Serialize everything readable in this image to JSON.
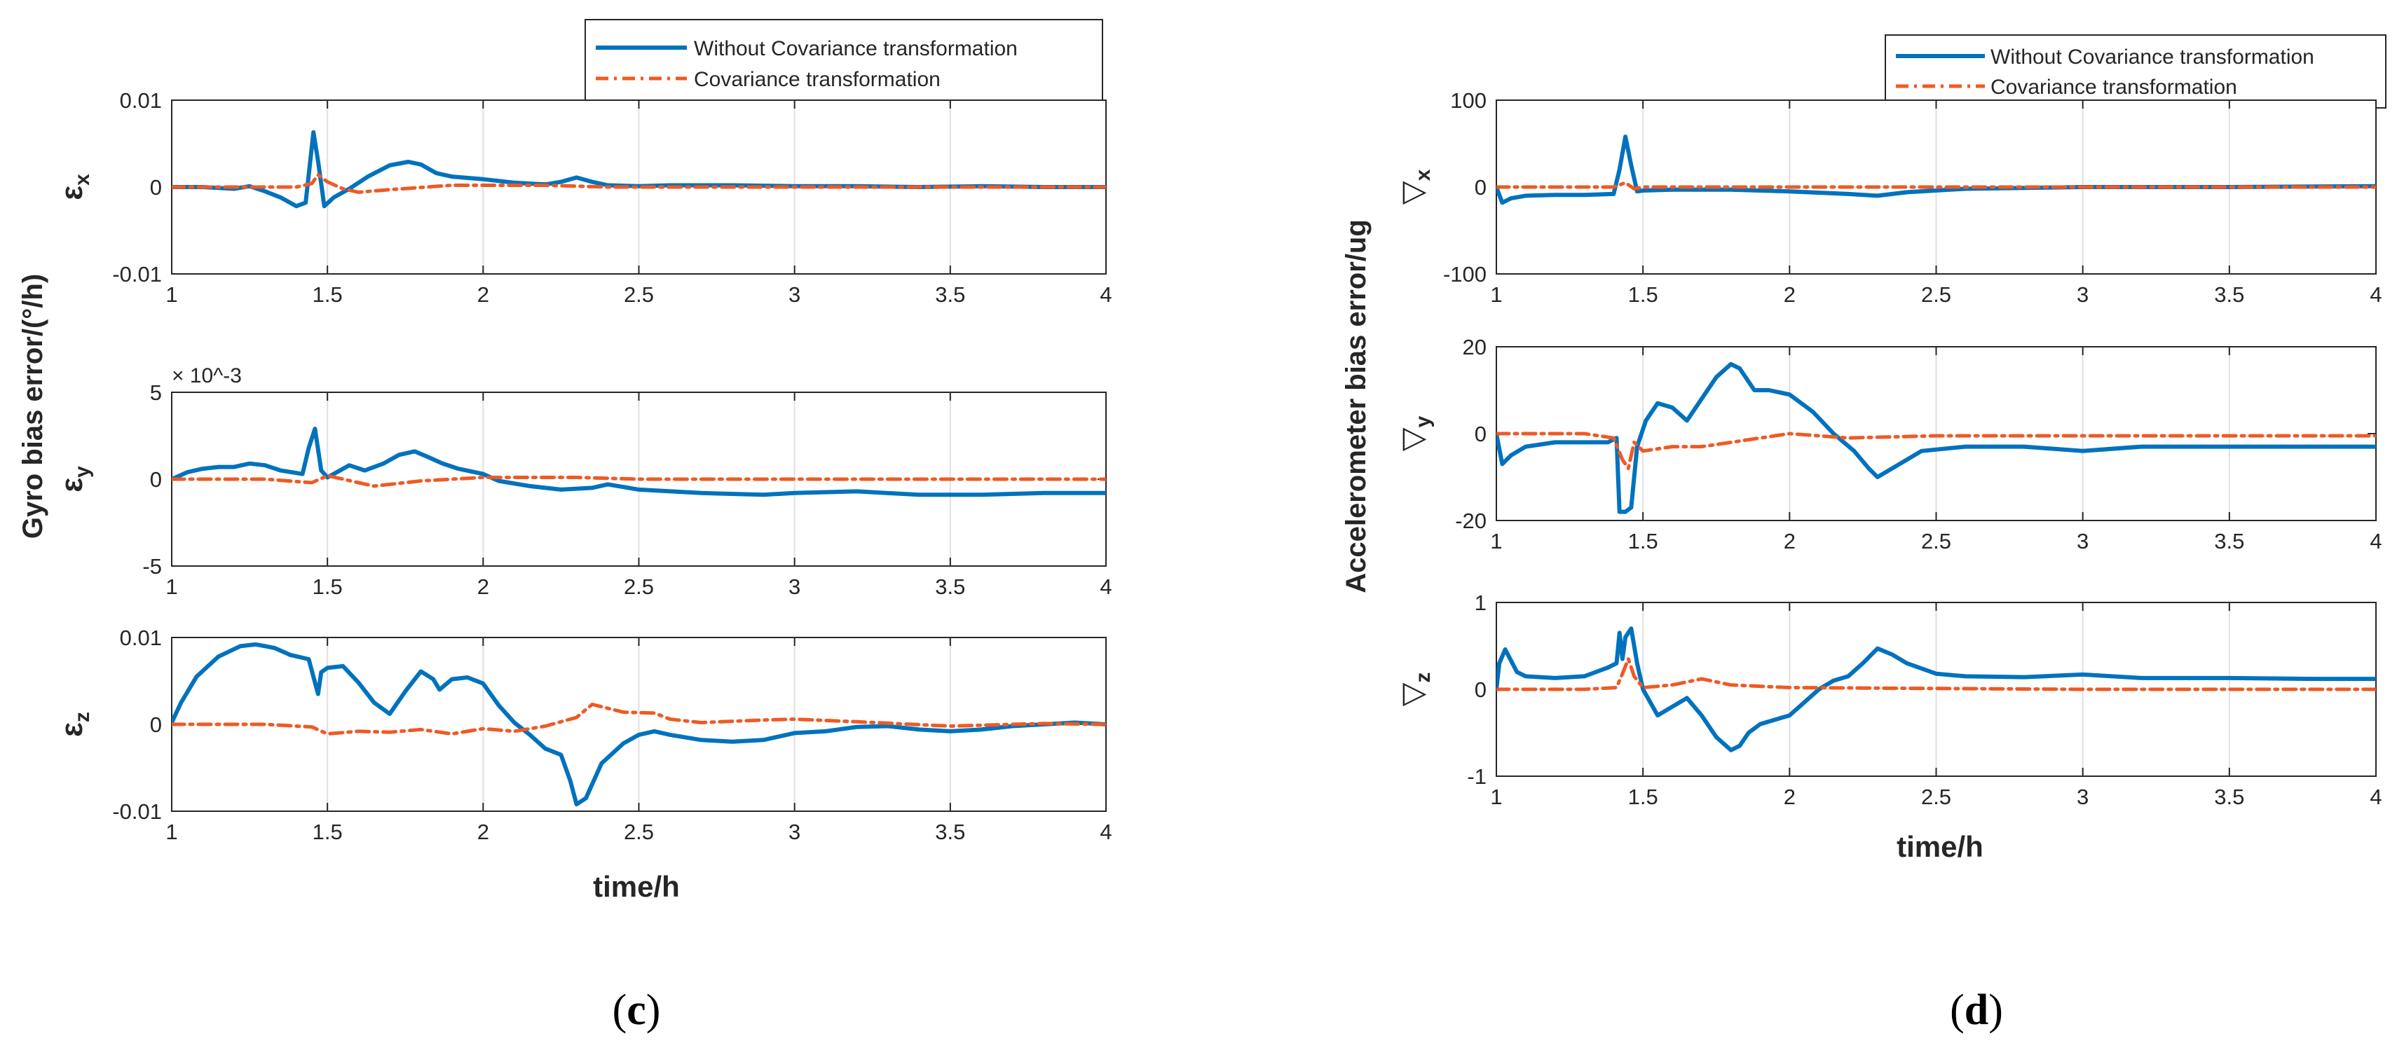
{
  "colors": {
    "without": "#0072BD",
    "with": "#EE5A24",
    "axis": "#262626",
    "grid": "#e0e0e0",
    "background": "#ffffff"
  },
  "panels": [
    {
      "id": "c",
      "label_open": "(",
      "label_letter": "c",
      "label_close": ")",
      "ylabel": "Gyro bias error/(°/h)",
      "xlabel": "time/h",
      "legend": [
        "Without Covariance transformation",
        "Covariance transformation"
      ]
    },
    {
      "id": "d",
      "label_open": "(",
      "label_letter": "d",
      "label_close": ")",
      "ylabel": "Accelerometer bias error/ug",
      "xlabel": "time/h",
      "legend": [
        "Without Covariance transformation",
        "Covariance transformation"
      ]
    }
  ],
  "chart_data": [
    {
      "type": "line",
      "panel": "c",
      "symbol": "ε",
      "subscript": "x",
      "xlim": [
        1,
        4
      ],
      "ylim": [
        -0.01,
        0.01
      ],
      "xticks": [
        1,
        1.5,
        2,
        2.5,
        3,
        3.5,
        4
      ],
      "xtick_labels": [
        "1",
        "1.5",
        "2",
        "2.5",
        "3",
        "3.5",
        "4"
      ],
      "yticks": [
        -0.01,
        0,
        0.01
      ],
      "ytick_labels": [
        "-0.01",
        "0",
        "0.01"
      ],
      "exponent_label": "",
      "series": [
        {
          "name": "Without Covariance transformation",
          "x": [
            1,
            1.1,
            1.2,
            1.25,
            1.3,
            1.35,
            1.4,
            1.43,
            1.455,
            1.47,
            1.49,
            1.52,
            1.57,
            1.63,
            1.7,
            1.76,
            1.8,
            1.85,
            1.9,
            2.0,
            2.1,
            2.2,
            2.25,
            2.3,
            2.35,
            2.4,
            2.5,
            2.6,
            2.8,
            3.0,
            3.2,
            3.4,
            3.6,
            3.8,
            4.0
          ],
          "y": [
            0,
            0,
            -0.0002,
            0.0001,
            -0.0005,
            -0.0012,
            -0.0022,
            -0.0018,
            0.0063,
            0.003,
            -0.0022,
            -0.0012,
            -0.0002,
            0.0012,
            0.0025,
            0.0029,
            0.0026,
            0.0016,
            0.0012,
            0.0009,
            0.0005,
            0.0003,
            0.0006,
            0.0011,
            0.0006,
            0.0002,
            0.0001,
            0.0002,
            0.0002,
            0.0001,
            0.0001,
            0,
            0.0001,
            0,
            0
          ]
        },
        {
          "name": "Covariance transformation",
          "x": [
            1,
            1.3,
            1.4,
            1.45,
            1.47,
            1.5,
            1.55,
            1.6,
            1.7,
            1.9,
            2.2,
            2.4,
            3.0,
            4.0
          ],
          "y": [
            0,
            0,
            0,
            0.0004,
            0.0014,
            0.0006,
            -0.0002,
            -0.0006,
            -0.0003,
            0.0002,
            0.0002,
            0,
            0,
            0
          ]
        }
      ]
    },
    {
      "type": "line",
      "panel": "c",
      "symbol": "ε",
      "subscript": "y",
      "xlim": [
        1,
        4
      ],
      "ylim": [
        -5,
        5
      ],
      "xticks": [
        1,
        1.5,
        2,
        2.5,
        3,
        3.5,
        4
      ],
      "xtick_labels": [
        "1",
        "1.5",
        "2",
        "2.5",
        "3",
        "3.5",
        "4"
      ],
      "yticks": [
        -5,
        0,
        5
      ],
      "ytick_labels": [
        "-5",
        "0",
        "5"
      ],
      "exponent_label": "× 10^-3",
      "series": [
        {
          "name": "Without Covariance transformation",
          "x": [
            1,
            1.05,
            1.1,
            1.15,
            1.2,
            1.25,
            1.3,
            1.35,
            1.42,
            1.44,
            1.46,
            1.48,
            1.5,
            1.53,
            1.57,
            1.62,
            1.68,
            1.73,
            1.78,
            1.82,
            1.87,
            1.92,
            2.0,
            2.05,
            2.15,
            2.25,
            2.35,
            2.4,
            2.5,
            2.7,
            2.9,
            3.0,
            3.2,
            3.4,
            3.6,
            3.8,
            4.0
          ],
          "y": [
            0,
            0.4,
            0.6,
            0.7,
            0.7,
            0.9,
            0.8,
            0.5,
            0.3,
            1.8,
            2.9,
            0.5,
            0.1,
            0.4,
            0.8,
            0.5,
            0.9,
            1.4,
            1.6,
            1.3,
            0.9,
            0.6,
            0.3,
            -0.1,
            -0.4,
            -0.6,
            -0.5,
            -0.3,
            -0.6,
            -0.8,
            -0.9,
            -0.8,
            -0.7,
            -0.9,
            -0.9,
            -0.8,
            -0.8
          ]
        },
        {
          "name": "Covariance transformation",
          "x": [
            1,
            1.3,
            1.45,
            1.5,
            1.6,
            1.65,
            1.8,
            2.0,
            2.3,
            2.5,
            3.0,
            4.0
          ],
          "y": [
            0,
            0,
            -0.2,
            0.2,
            -0.2,
            -0.4,
            -0.1,
            0.1,
            0.1,
            0,
            0,
            0
          ]
        }
      ]
    },
    {
      "type": "line",
      "panel": "c",
      "symbol": "ε",
      "subscript": "z",
      "xlim": [
        1,
        4
      ],
      "ylim": [
        -0.01,
        0.01
      ],
      "xticks": [
        1,
        1.5,
        2,
        2.5,
        3,
        3.5,
        4
      ],
      "xtick_labels": [
        "1",
        "1.5",
        "2",
        "2.5",
        "3",
        "3.5",
        "4"
      ],
      "yticks": [
        -0.01,
        0,
        0.01
      ],
      "ytick_labels": [
        "-0.01",
        "0",
        "0.01"
      ],
      "exponent_label": "",
      "series": [
        {
          "name": "Without Covariance transformation",
          "x": [
            1,
            1.03,
            1.08,
            1.15,
            1.22,
            1.27,
            1.33,
            1.38,
            1.44,
            1.47,
            1.48,
            1.5,
            1.55,
            1.6,
            1.65,
            1.7,
            1.75,
            1.8,
            1.84,
            1.86,
            1.9,
            1.95,
            2.0,
            2.05,
            2.1,
            2.15,
            2.2,
            2.25,
            2.28,
            2.3,
            2.33,
            2.38,
            2.45,
            2.5,
            2.55,
            2.6,
            2.7,
            2.8,
            2.9,
            3.0,
            3.1,
            3.2,
            3.3,
            3.4,
            3.5,
            3.6,
            3.7,
            3.8,
            3.9,
            4.0
          ],
          "y": [
            0.0002,
            0.0025,
            0.0055,
            0.0078,
            0.009,
            0.0092,
            0.0088,
            0.008,
            0.0075,
            0.0035,
            0.006,
            0.0065,
            0.0067,
            0.0048,
            0.0025,
            0.0012,
            0.0038,
            0.0061,
            0.0052,
            0.004,
            0.0052,
            0.0054,
            0.0047,
            0.0022,
            0.0002,
            -0.0012,
            -0.0028,
            -0.0035,
            -0.0065,
            -0.0092,
            -0.0085,
            -0.0045,
            -0.0022,
            -0.0012,
            -0.0008,
            -0.0012,
            -0.0018,
            -0.002,
            -0.0018,
            -0.001,
            -0.0008,
            -0.0003,
            -0.0002,
            -0.0006,
            -0.0008,
            -0.0006,
            -0.0002,
            0,
            0.0002,
            0
          ]
        },
        {
          "name": "Covariance transformation",
          "x": [
            1,
            1.3,
            1.45,
            1.5,
            1.6,
            1.7,
            1.8,
            1.9,
            2.0,
            2.1,
            2.2,
            2.3,
            2.35,
            2.45,
            2.55,
            2.6,
            2.7,
            2.9,
            3.0,
            3.2,
            3.5,
            3.8,
            4.0
          ],
          "y": [
            0,
            0,
            -0.0003,
            -0.0011,
            -0.0008,
            -0.0009,
            -0.0006,
            -0.0011,
            -0.0005,
            -0.0008,
            -0.0002,
            0.0008,
            0.0023,
            0.0014,
            0.0013,
            0.0006,
            0.0002,
            0.0005,
            0.0006,
            0.0003,
            -0.0002,
            0.0001,
            0
          ]
        }
      ]
    },
    {
      "type": "line",
      "panel": "d",
      "symbol": "▽",
      "subscript": "x",
      "xlim": [
        1,
        4
      ],
      "ylim": [
        -100,
        100
      ],
      "xticks": [
        1,
        1.5,
        2,
        2.5,
        3,
        3.5,
        4
      ],
      "xtick_labels": [
        "1",
        "1.5",
        "2",
        "2.5",
        "3",
        "3.5",
        "4"
      ],
      "yticks": [
        -100,
        0,
        100
      ],
      "ytick_labels": [
        "-100",
        "0",
        "100"
      ],
      "exponent_label": "",
      "series": [
        {
          "name": "Without Covariance transformation",
          "x": [
            1,
            1.02,
            1.05,
            1.1,
            1.2,
            1.3,
            1.4,
            1.42,
            1.44,
            1.46,
            1.48,
            1.5,
            1.6,
            1.8,
            2.0,
            2.2,
            2.3,
            2.4,
            2.6,
            3.0,
            3.5,
            4.0
          ],
          "y": [
            0,
            -18,
            -13,
            -10,
            -9,
            -9,
            -8,
            20,
            58,
            25,
            -5,
            -4,
            -3,
            -3,
            -5,
            -8,
            -10,
            -6,
            -2,
            0,
            0,
            1
          ]
        },
        {
          "name": "Covariance transformation",
          "x": [
            1,
            1.4,
            1.44,
            1.47,
            1.5,
            1.6,
            2.0,
            2.5,
            3.0,
            4.0
          ],
          "y": [
            0,
            0,
            5,
            -2,
            0,
            0,
            0,
            0,
            0,
            0
          ]
        }
      ]
    },
    {
      "type": "line",
      "panel": "d",
      "symbol": "▽",
      "subscript": "y",
      "xlim": [
        1,
        4
      ],
      "ylim": [
        -20,
        20
      ],
      "xticks": [
        1,
        1.5,
        2,
        2.5,
        3,
        3.5,
        4
      ],
      "xtick_labels": [
        "1",
        "1.5",
        "2",
        "2.5",
        "3",
        "3.5",
        "4"
      ],
      "yticks": [
        -20,
        0,
        20
      ],
      "ytick_labels": [
        "-20",
        "0",
        "20"
      ],
      "exponent_label": "",
      "series": [
        {
          "name": "Without Covariance transformation",
          "x": [
            1,
            1.02,
            1.05,
            1.1,
            1.2,
            1.3,
            1.38,
            1.41,
            1.42,
            1.44,
            1.46,
            1.48,
            1.51,
            1.55,
            1.6,
            1.65,
            1.7,
            1.75,
            1.8,
            1.83,
            1.88,
            1.93,
            2.0,
            2.08,
            2.15,
            2.22,
            2.27,
            2.3,
            2.35,
            2.45,
            2.6,
            2.8,
            3.0,
            3.2,
            3.5,
            3.8,
            4.0
          ],
          "y": [
            0,
            -7,
            -5,
            -3,
            -2,
            -2,
            -2,
            -1,
            -18,
            -18,
            -17,
            -3,
            3,
            7,
            6,
            3,
            8,
            13,
            16,
            15,
            10,
            10,
            9,
            5,
            0,
            -4,
            -8,
            -10,
            -8,
            -4,
            -3,
            -3,
            -4,
            -3,
            -3,
            -3,
            -3
          ]
        },
        {
          "name": "Covariance transformation",
          "x": [
            1,
            1.3,
            1.4,
            1.43,
            1.45,
            1.47,
            1.5,
            1.6,
            1.7,
            1.8,
            2.0,
            2.2,
            2.5,
            3.0,
            4.0
          ],
          "y": [
            0,
            0,
            -1,
            -6,
            -8,
            -2,
            -4,
            -3,
            -3,
            -2,
            0,
            -1,
            -0.5,
            -0.5,
            -0.5
          ]
        }
      ]
    },
    {
      "type": "line",
      "panel": "d",
      "symbol": "▽",
      "subscript": "z",
      "xlim": [
        1,
        4
      ],
      "ylim": [
        -1,
        1
      ],
      "xticks": [
        1,
        1.5,
        2,
        2.5,
        3,
        3.5,
        4
      ],
      "xtick_labels": [
        "1",
        "1.5",
        "2",
        "2.5",
        "3",
        "3.5",
        "4"
      ],
      "yticks": [
        -1,
        0,
        1
      ],
      "ytick_labels": [
        "-1",
        "0",
        "1"
      ],
      "exponent_label": "",
      "series": [
        {
          "name": "Without Covariance transformation",
          "x": [
            1,
            1.01,
            1.03,
            1.07,
            1.1,
            1.2,
            1.3,
            1.38,
            1.41,
            1.42,
            1.43,
            1.44,
            1.46,
            1.48,
            1.5,
            1.55,
            1.6,
            1.65,
            1.7,
            1.75,
            1.8,
            1.83,
            1.86,
            1.9,
            2.0,
            2.05,
            2.1,
            2.15,
            2.2,
            2.25,
            2.3,
            2.35,
            2.4,
            2.5,
            2.6,
            2.8,
            3.0,
            3.2,
            3.5,
            3.8,
            4.0
          ],
          "y": [
            0,
            0.3,
            0.46,
            0.2,
            0.15,
            0.13,
            0.15,
            0.25,
            0.3,
            0.65,
            0.35,
            0.6,
            0.7,
            0.3,
            0,
            -0.3,
            -0.2,
            -0.1,
            -0.3,
            -0.55,
            -0.7,
            -0.65,
            -0.5,
            -0.4,
            -0.3,
            -0.15,
            0,
            0.1,
            0.15,
            0.3,
            0.47,
            0.4,
            0.3,
            0.18,
            0.15,
            0.14,
            0.17,
            0.13,
            0.13,
            0.12,
            0.12
          ]
        },
        {
          "name": "Covariance transformation",
          "x": [
            1,
            1.3,
            1.41,
            1.43,
            1.45,
            1.47,
            1.5,
            1.6,
            1.7,
            1.8,
            2.0,
            2.5,
            3.0,
            4.0
          ],
          "y": [
            0,
            0,
            0.02,
            0.18,
            0.35,
            0.15,
            0.02,
            0.05,
            0.12,
            0.05,
            0.02,
            0.01,
            0,
            0
          ]
        }
      ]
    }
  ]
}
